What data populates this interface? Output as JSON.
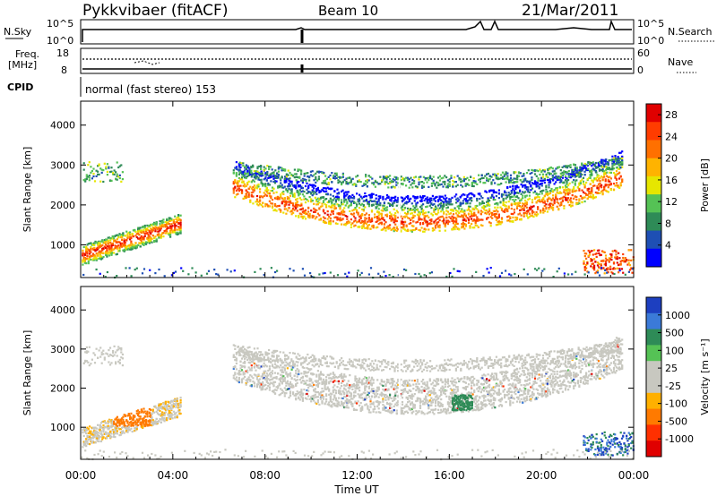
{
  "header": {
    "station": "Pykkvibaer (fitACF)",
    "beam": "Beam 10",
    "date": "21/Mar/2011"
  },
  "strip_labels": {
    "nsky": "N.Sky",
    "nsky_ticks": [
      "10^5",
      "10^0"
    ],
    "nsearch": "N.Search",
    "nsearch_ticks": [
      "10^5",
      "10^0"
    ],
    "freq_line1": "Freq.",
    "freq_line2": "[MHz]",
    "freq_ticks": [
      "18",
      "8"
    ],
    "nave": "Nave",
    "nave_ticks": [
      "60",
      "0"
    ],
    "cpid": "CPID",
    "cpid_value": "normal (fast stereo) 153"
  },
  "colors": {
    "power_scale": [
      "#0000ff",
      "#1e4fb4",
      "#2e8b57",
      "#55c255",
      "#e6e600",
      "#ffb300",
      "#ff7000",
      "#ff3c00",
      "#e00000"
    ],
    "velocity_scale": [
      "#1d3fc0",
      "#3b7ad8",
      "#2e8b57",
      "#55c255",
      "#c8c8c0",
      "#c8c8c0",
      "#ffb000",
      "#ff7a00",
      "#ff3000",
      "#e00000"
    ],
    "ground_scatter": "#c8c8c0"
  },
  "chart_data": [
    {
      "type": "heatmap",
      "name": "power",
      "title": "",
      "xlabel": "",
      "ylabel": "Slant Range [km]",
      "x_ticks": [
        "00:00",
        "04:00",
        "08:00",
        "12:00",
        "16:00",
        "20:00",
        "00:00"
      ],
      "y_ticks": [
        "1000",
        "2000",
        "3000",
        "4000"
      ],
      "ylim": [
        180,
        4600
      ],
      "xlim_hours": [
        0,
        24
      ],
      "colorbar": {
        "label": "Power [dB]",
        "ticks": [
          "4",
          "8",
          "12",
          "16",
          "20",
          "24",
          "28"
        ],
        "range": [
          0,
          30
        ]
      },
      "features": [
        {
          "t_start": 0.0,
          "t_end": 4.2,
          "range_start": 500,
          "range_end": 1400,
          "value": 20
        },
        {
          "t_start": 6.8,
          "t_end": 17.5,
          "range_start": 1200,
          "range_end": 2800,
          "value": 18
        },
        {
          "t_start": 17.5,
          "t_end": 22.5,
          "range_start": 1600,
          "range_end": 3000,
          "value": 12
        },
        {
          "t_start": 22.0,
          "t_end": 24.0,
          "range_start": 300,
          "range_end": 800,
          "value": 26
        }
      ]
    },
    {
      "type": "heatmap",
      "name": "velocity",
      "title": "",
      "xlabel": "Time UT",
      "ylabel": "Slant Range [km]",
      "x_ticks": [
        "00:00",
        "04:00",
        "08:00",
        "12:00",
        "16:00",
        "20:00",
        "00:00"
      ],
      "y_ticks": [
        "1000",
        "2000",
        "3000",
        "4000"
      ],
      "ylim": [
        180,
        4600
      ],
      "xlim_hours": [
        0,
        24
      ],
      "colorbar": {
        "label": "Velocity [m s⁻¹]",
        "ticks": [
          "1000",
          "500",
          "100",
          "25",
          "-25",
          "-100",
          "-500",
          "-1000"
        ]
      },
      "features": [
        {
          "t_start": 1.5,
          "t_end": 3.0,
          "range_start": 1100,
          "range_end": 1600,
          "value": -400
        },
        {
          "t_start": 16.0,
          "t_end": 17.0,
          "range_start": 1500,
          "range_end": 1900,
          "value": 150
        },
        {
          "t_start": 22.0,
          "t_end": 24.0,
          "range_start": 300,
          "range_end": 700,
          "value": 400
        }
      ]
    }
  ]
}
